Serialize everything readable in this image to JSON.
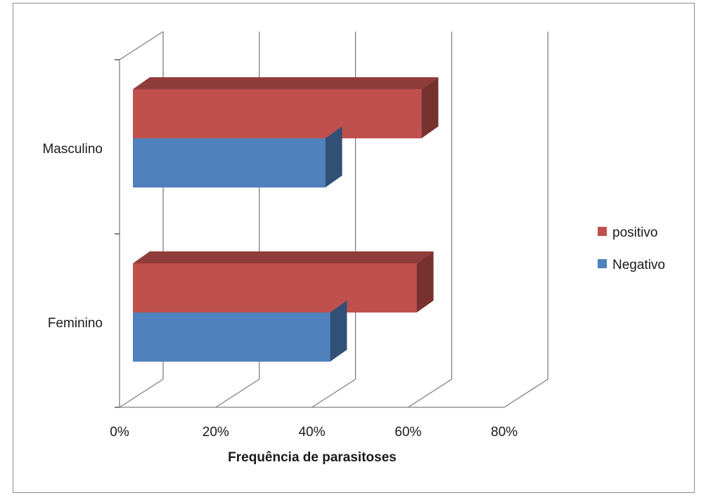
{
  "chart_data": {
    "type": "bar",
    "orientation": "horizontal",
    "style": "3d-clustered",
    "title": "",
    "xlabel": "Frequência de parasitoses",
    "ylabel": "",
    "xlim": [
      0,
      0.8
    ],
    "x_ticks": [
      "0%",
      "20%",
      "40%",
      "60%",
      "80%"
    ],
    "categories": [
      "Masculino",
      "Feminino"
    ],
    "series": [
      {
        "name": "positivo",
        "color": "#C0504D",
        "values": [
          0.6,
          0.59
        ]
      },
      {
        "name": "Negativo",
        "color": "#4F81BD",
        "values": [
          0.4,
          0.41
        ]
      }
    ],
    "grid": true,
    "legend_position": "right"
  }
}
